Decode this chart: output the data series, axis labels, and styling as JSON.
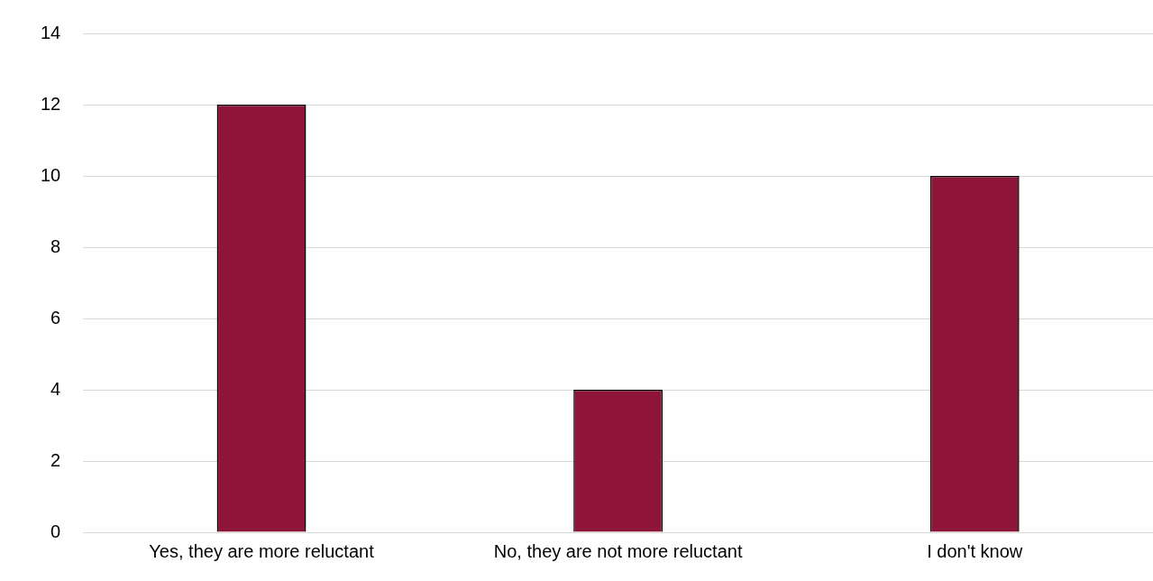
{
  "chart_data": {
    "type": "bar",
    "categories": [
      "Yes, they are more reluctant",
      "No, they are not more reluctant",
      "I don't know"
    ],
    "values": [
      12,
      4,
      10
    ],
    "color": "#8f1439",
    "ylim": [
      0,
      14
    ],
    "yticks": [
      0,
      2,
      4,
      6,
      8,
      10,
      12,
      14
    ],
    "grid": "y",
    "legend": false
  }
}
